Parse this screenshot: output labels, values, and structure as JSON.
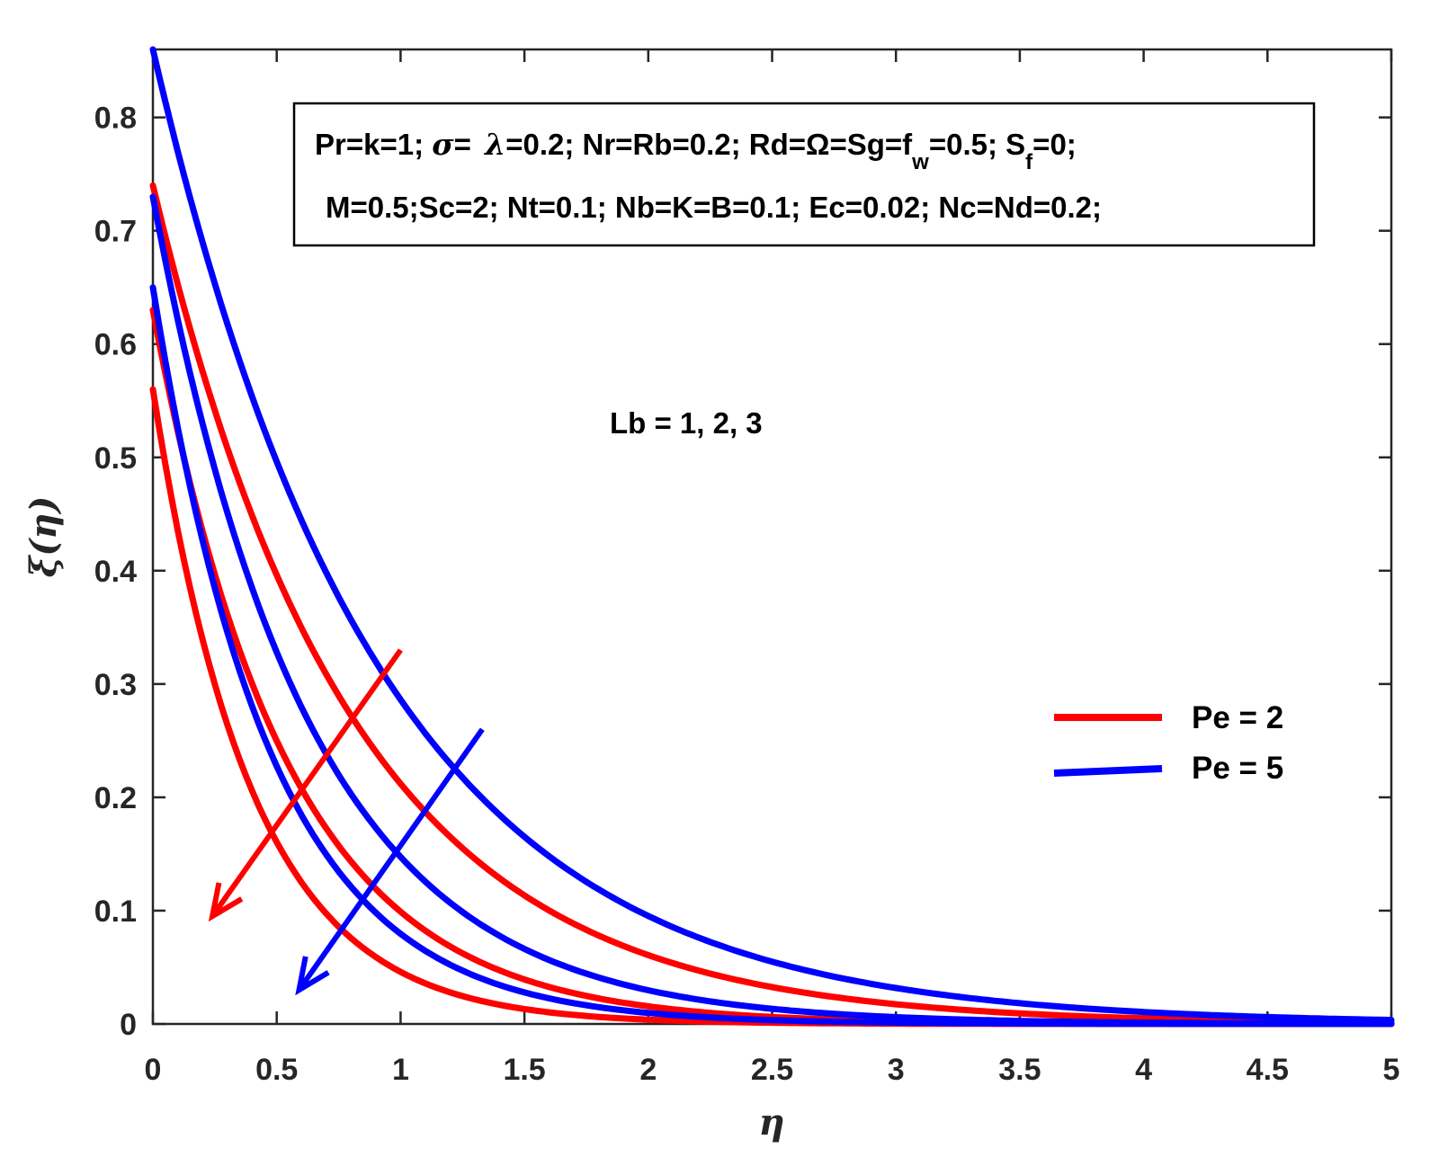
{
  "chart_data": {
    "type": "line",
    "xlabel": "η",
    "ylabel": "ξ(η)",
    "xlim": [
      0,
      5
    ],
    "ylim": [
      0,
      0.86
    ],
    "xticks": [
      "0",
      "0.5",
      "1",
      "1.5",
      "2",
      "2.5",
      "3",
      "3.5",
      "4",
      "4.5",
      "5"
    ],
    "yticks": [
      "0",
      "0.1",
      "0.2",
      "0.3",
      "0.4",
      "0.5",
      "0.6",
      "0.7",
      "0.8"
    ],
    "param_box": {
      "line1": {
        "a": "Pr=k=1; ",
        "sigma": "σ",
        "b": "= ",
        "lambda": "λ",
        "c": "=0.2; Nr=Rb=0.2; Rd=Ω=Sg=f",
        "sub_w": "w",
        "d": "=0.5; S",
        "sub_f": "f",
        "e": "=0;"
      },
      "line2": "M=0.5;Sc=2; Nt=0.1; Nb=K=B=0.1; Ec=0.02; Nc=Nd=0.2;"
    },
    "annotation": "Lb = 1, 2, 3",
    "legend": [
      {
        "label": "Pe = 2",
        "color": "#ff0000"
      },
      {
        "label": "Pe = 5",
        "color": "#0000ff"
      }
    ],
    "arrows": [
      {
        "color": "#ff0000",
        "from": [
          1.0,
          0.33
        ],
        "to": [
          0.24,
          0.095
        ]
      },
      {
        "color": "#0000ff",
        "from": [
          1.33,
          0.26
        ],
        "to": [
          0.59,
          0.03
        ]
      }
    ],
    "series": [
      {
        "name": "Pe = 2, Lb = 1",
        "color": "#ff0000",
        "y0": 0.74,
        "decay": 1.25
      },
      {
        "name": "Pe = 2, Lb = 2",
        "color": "#ff0000",
        "y0": 0.63,
        "decay": 1.85
      },
      {
        "name": "Pe = 2, Lb = 3",
        "color": "#ff0000",
        "y0": 0.56,
        "decay": 2.5
      },
      {
        "name": "Pe = 5, Lb = 1",
        "color": "#0000ff",
        "y0": 0.86,
        "decay": 1.1
      },
      {
        "name": "Pe = 5, Lb = 2",
        "color": "#0000ff",
        "y0": 0.73,
        "decay": 1.6
      },
      {
        "name": "Pe = 5, Lb = 3",
        "color": "#0000ff",
        "y0": 0.65,
        "decay": 2.1
      }
    ]
  }
}
